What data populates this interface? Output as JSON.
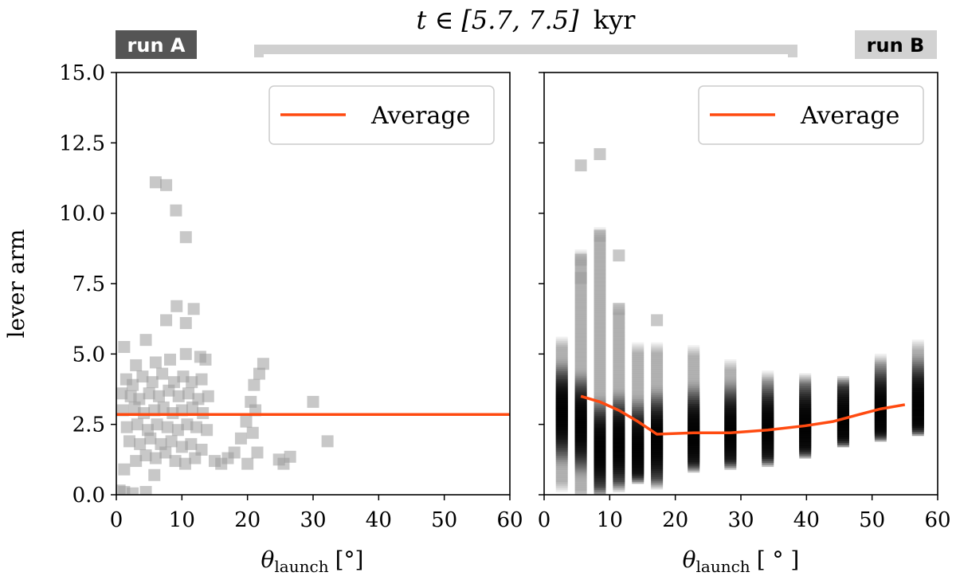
{
  "figure": {
    "time_label_prefix": "t ∈ [5.7, 7.5]",
    "time_label_unit": "kyr",
    "bracket_color": "#d0d0d0"
  },
  "chart_data": [
    {
      "type": "scatter",
      "badge": "run A",
      "badge_bg": "#555555",
      "badge_fg": "#ffffff",
      "xlabel_main": "θ",
      "xlabel_sub": "launch",
      "xlabel_unit": "[°]",
      "ylabel": "lever arm",
      "xlim": [
        0,
        60
      ],
      "ylim": [
        0,
        15
      ],
      "xticks": [
        "0",
        "10",
        "20",
        "30",
        "40",
        "50",
        "60"
      ],
      "yticks": [
        "0.0",
        "2.5",
        "5.0",
        "7.5",
        "10.0",
        "12.5",
        "15.0"
      ],
      "legend": {
        "label": "Average",
        "position": "top-right"
      },
      "average_color": "#ff4a10",
      "points": [
        [
          6.0,
          11.1
        ],
        [
          7.6,
          11.0
        ],
        [
          9.1,
          10.1
        ],
        [
          10.6,
          9.15
        ],
        [
          9.2,
          6.7
        ],
        [
          11.8,
          6.6
        ],
        [
          7.6,
          6.2
        ],
        [
          10.6,
          6.1
        ],
        [
          1.2,
          5.25
        ],
        [
          4.5,
          5.5
        ],
        [
          3.0,
          4.6
        ],
        [
          6.0,
          4.7
        ],
        [
          8.2,
          4.8
        ],
        [
          10.6,
          5.0
        ],
        [
          12.8,
          4.9
        ],
        [
          13.6,
          4.8
        ],
        [
          1.5,
          4.1
        ],
        [
          2.5,
          3.9
        ],
        [
          4.0,
          4.2
        ],
        [
          5.5,
          4.0
        ],
        [
          7.0,
          4.3
        ],
        [
          8.8,
          4.0
        ],
        [
          10.2,
          4.2
        ],
        [
          11.5,
          4.0
        ],
        [
          13.0,
          4.1
        ],
        [
          0.8,
          3.6
        ],
        [
          2.2,
          3.5
        ],
        [
          3.5,
          3.4
        ],
        [
          5.0,
          3.6
        ],
        [
          6.5,
          3.5
        ],
        [
          8.0,
          3.7
        ],
        [
          9.5,
          3.5
        ],
        [
          11.0,
          3.6
        ],
        [
          12.5,
          3.4
        ],
        [
          14.0,
          3.5
        ],
        [
          1.0,
          3.0
        ],
        [
          2.8,
          3.1
        ],
        [
          4.2,
          2.9
        ],
        [
          5.8,
          3.0
        ],
        [
          7.2,
          3.1
        ],
        [
          8.6,
          2.9
        ],
        [
          10.0,
          3.0
        ],
        [
          11.6,
          3.1
        ],
        [
          13.2,
          2.9
        ],
        [
          1.6,
          2.4
        ],
        [
          3.2,
          2.5
        ],
        [
          4.8,
          2.3
        ],
        [
          6.2,
          2.5
        ],
        [
          7.8,
          2.4
        ],
        [
          9.4,
          2.3
        ],
        [
          10.8,
          2.5
        ],
        [
          12.2,
          2.4
        ],
        [
          13.8,
          2.3
        ],
        [
          2.0,
          1.9
        ],
        [
          3.6,
          1.8
        ],
        [
          5.2,
          2.0
        ],
        [
          6.8,
          1.8
        ],
        [
          8.4,
          1.9
        ],
        [
          10.0,
          1.7
        ],
        [
          11.4,
          1.8
        ],
        [
          13.0,
          1.6
        ],
        [
          1.2,
          0.9
        ],
        [
          3.0,
          1.2
        ],
        [
          4.5,
          1.4
        ],
        [
          6.0,
          1.3
        ],
        [
          7.5,
          1.5
        ],
        [
          9.0,
          1.2
        ],
        [
          10.5,
          1.1
        ],
        [
          12.0,
          1.3
        ],
        [
          0.5,
          0.15
        ],
        [
          1.2,
          0.1
        ],
        [
          2.5,
          0.05
        ],
        [
          4.5,
          0.1
        ],
        [
          5.8,
          0.7
        ],
        [
          15.0,
          1.2
        ],
        [
          16.0,
          1.1
        ],
        [
          17.0,
          1.3
        ],
        [
          18.0,
          1.5
        ],
        [
          19.0,
          2.0
        ],
        [
          19.8,
          2.6
        ],
        [
          20.5,
          3.3
        ],
        [
          21.0,
          3.9
        ],
        [
          21.8,
          4.3
        ],
        [
          22.4,
          4.65
        ],
        [
          20.0,
          1.1
        ],
        [
          21.5,
          1.5
        ],
        [
          20.8,
          2.2
        ],
        [
          21.2,
          3.0
        ],
        [
          25.5,
          1.1
        ],
        [
          26.5,
          1.35
        ],
        [
          24.8,
          1.25
        ],
        [
          30.0,
          3.3
        ],
        [
          32.2,
          1.9
        ]
      ],
      "average_x": [
        0,
        60
      ],
      "average_y": [
        2.85,
        2.85
      ]
    },
    {
      "type": "scatter",
      "badge": "run B",
      "badge_bg": "#d2d2d2",
      "badge_fg": "#000000",
      "xlabel_main": "θ",
      "xlabel_sub": "launch",
      "xlabel_unit": "[ ° ]",
      "ylabel": "",
      "xlim": [
        0,
        60
      ],
      "ylim": [
        0,
        15
      ],
      "xticks": [
        "0",
        "10",
        "20",
        "30",
        "40",
        "50",
        "60"
      ],
      "yticks": [
        "0.0",
        "2.5",
        "5.0",
        "7.5",
        "10.0",
        "12.5",
        "15.0"
      ],
      "legend": {
        "label": "Average",
        "position": "top-right"
      },
      "average_color": "#ff4a10",
      "columns": [
        {
          "x": 2.7,
          "ymin": 0.3,
          "ymax": 5.4,
          "center": 2.9
        },
        {
          "x": 5.6,
          "ymin": 0.0,
          "ymax": 8.5,
          "center": 2.5
        },
        {
          "x": 8.5,
          "ymin": 0.1,
          "ymax": 9.3,
          "center": 1.6
        },
        {
          "x": 11.4,
          "ymin": 0.3,
          "ymax": 6.6,
          "center": 1.8
        },
        {
          "x": 14.3,
          "ymin": 0.6,
          "ymax": 5.2,
          "center": 1.6
        },
        {
          "x": 17.2,
          "ymin": 0.4,
          "ymax": 5.2,
          "center": 1.9
        },
        {
          "x": 22.8,
          "ymin": 1.0,
          "ymax": 5.1,
          "center": 2.1
        },
        {
          "x": 28.4,
          "ymin": 1.1,
          "ymax": 4.6,
          "center": 2.2
        },
        {
          "x": 34.1,
          "ymin": 1.2,
          "ymax": 4.2,
          "center": 2.3
        },
        {
          "x": 39.8,
          "ymin": 1.5,
          "ymax": 4.1,
          "center": 2.4
        },
        {
          "x": 45.6,
          "ymin": 1.9,
          "ymax": 4.0,
          "center": 2.6
        },
        {
          "x": 51.3,
          "ymin": 2.1,
          "ymax": 4.8,
          "center": 2.9
        },
        {
          "x": 57.0,
          "ymin": 2.3,
          "ymax": 5.3,
          "center": 3.1
        }
      ],
      "outliers": [
        [
          5.6,
          11.7
        ],
        [
          8.5,
          12.1
        ],
        [
          8.5,
          9.2
        ],
        [
          11.4,
          8.5
        ],
        [
          5.6,
          8.35
        ],
        [
          5.6,
          7.7
        ],
        [
          11.4,
          6.6
        ],
        [
          17.2,
          6.2
        ]
      ],
      "average_x": [
        5.6,
        8.5,
        11.4,
        14.3,
        17.2,
        22.8,
        28.4,
        34.1,
        39.8,
        44.0,
        48.0,
        51.3,
        55.0
      ],
      "average_y": [
        3.5,
        3.3,
        3.0,
        2.6,
        2.15,
        2.2,
        2.2,
        2.3,
        2.45,
        2.6,
        2.85,
        3.05,
        3.2
      ]
    }
  ]
}
